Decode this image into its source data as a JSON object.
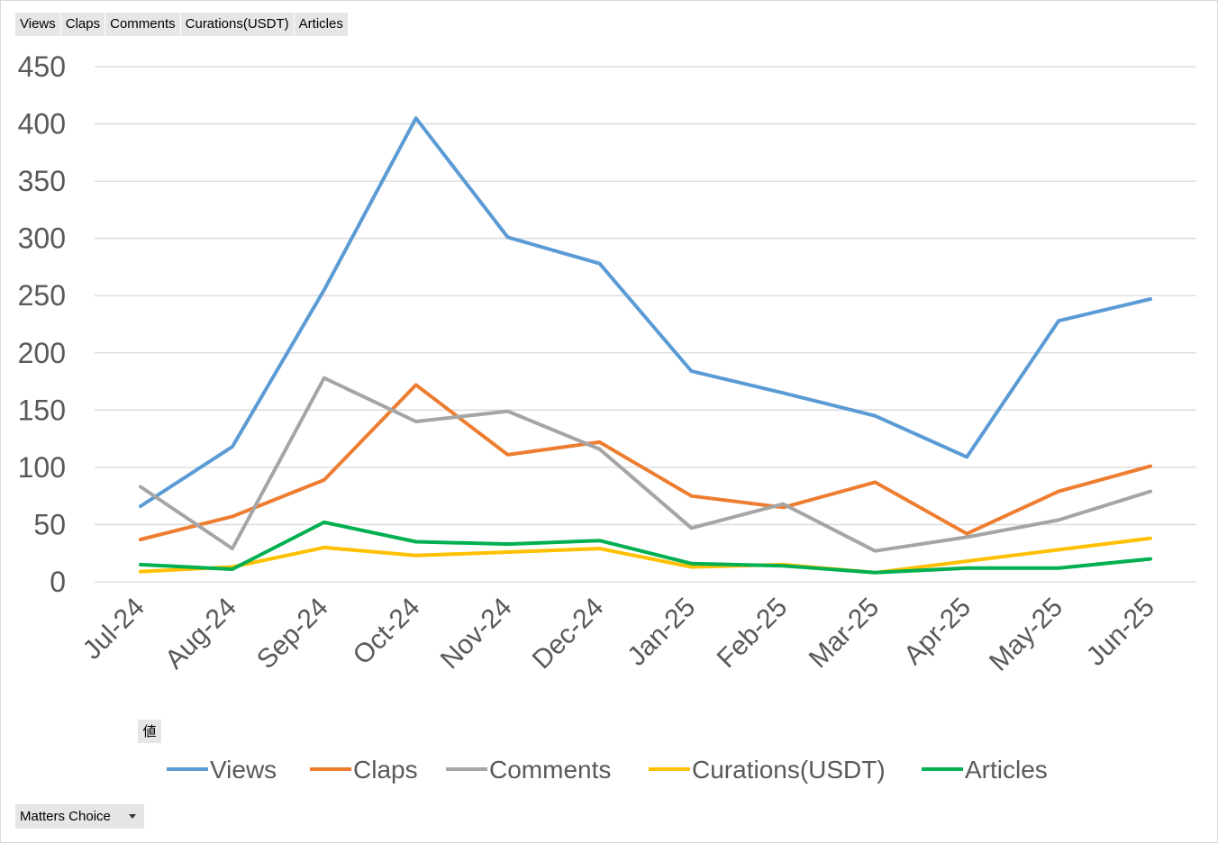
{
  "field_buttons": [
    "Views",
    "Claps",
    "Comments",
    "Curations(USDT)",
    "Articles"
  ],
  "values_chip": "値",
  "filter": {
    "label": "Matters Choice",
    "icon": "dropdown-arrow-icon"
  },
  "chart_data": {
    "type": "line",
    "categories": [
      "Jul-24",
      "Aug-24",
      "Sep-24",
      "Oct-24",
      "Nov-24",
      "Dec-24",
      "Jan-25",
      "Feb-25",
      "Mar-25",
      "Apr-25",
      "May-25",
      "Jun-25"
    ],
    "ylim": [
      0,
      450
    ],
    "yticks": [
      0,
      50,
      100,
      150,
      200,
      250,
      300,
      350,
      400,
      450
    ],
    "grid": true,
    "legend_position": "bottom",
    "series": [
      {
        "name": "Views",
        "color": "#5B9BD5",
        "values": [
          66,
          118,
          255,
          405,
          301,
          278,
          184,
          165,
          145,
          109,
          228,
          247
        ]
      },
      {
        "name": "Claps",
        "color": "#ED7D31",
        "values": [
          37,
          57,
          89,
          172,
          111,
          122,
          75,
          65,
          87,
          42,
          79,
          101
        ]
      },
      {
        "name": "Comments",
        "color": "#A5A5A5",
        "values": [
          83,
          29,
          178,
          140,
          149,
          116,
          47,
          68,
          27,
          39,
          54,
          79
        ]
      },
      {
        "name": "Curations(USDT)",
        "color": "#FFC000",
        "values": [
          9,
          13,
          30,
          23,
          26,
          29,
          13,
          15,
          8,
          18,
          28,
          38
        ]
      },
      {
        "name": "Articles",
        "color": "#00B050",
        "values": [
          15,
          11,
          52,
          35,
          33,
          36,
          16,
          14,
          8,
          12,
          12,
          20
        ]
      }
    ]
  }
}
